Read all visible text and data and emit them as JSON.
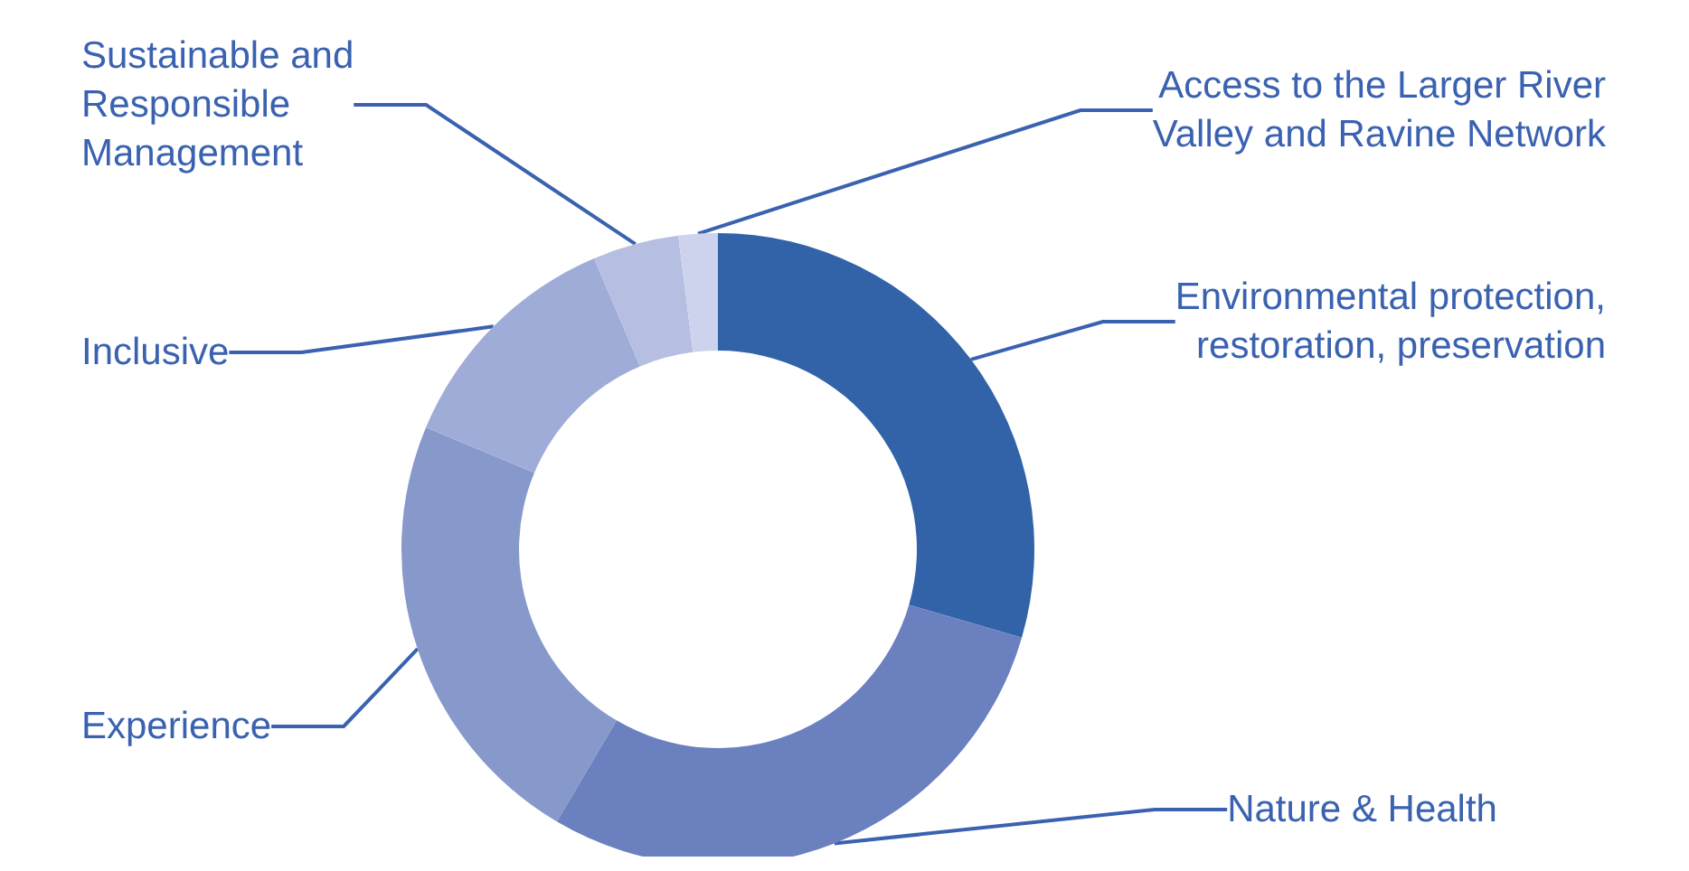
{
  "chart_data": {
    "type": "donut",
    "categories": [
      "Environmental protection,\nrestoration, preservation",
      "Nature & Health",
      "Experience",
      "Inclusive",
      "Sustainable and\nResponsible\nManagement",
      "Access to the Larger River\nValley and Ravine Network"
    ],
    "values": [
      29.5,
      29,
      22.8,
      12.3,
      4.4,
      2
    ],
    "colors": [
      "#3263a9",
      "#6a80bf",
      "#8798cb",
      "#a0acd8",
      "#b6bfe2",
      "#cdd3ec"
    ]
  }
}
